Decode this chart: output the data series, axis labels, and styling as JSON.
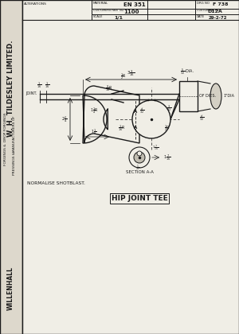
{
  "bg_color": "#e8e4d8",
  "paper_color": "#f0eee6",
  "left_strip_color": "#ddd8cc",
  "line_color": "#1a1a1a",
  "dim_color": "#1a1a1a",
  "title_text": "HIP JOINT TEE",
  "normalise_text": "NORMALISE SHOTBLAST.",
  "section_text": "SECTION A-A",
  "header": {
    "ALTERATIONS": "ALTERATIONS",
    "mat_label": "MATERIAL",
    "mat_val": "EN 351",
    "drg_label": "DRG NO",
    "drg_val": "F 738",
    "cust_part_label": "CUSTOMERS PART NO",
    "cust_part_val": "1100",
    "cust_no_label": "CUSTOMERS NO",
    "cust_no_val": "D12A",
    "scale_label": "SCALE",
    "scale_val": "1/1",
    "date_label": "DATE",
    "date_val": "29-2-72"
  }
}
